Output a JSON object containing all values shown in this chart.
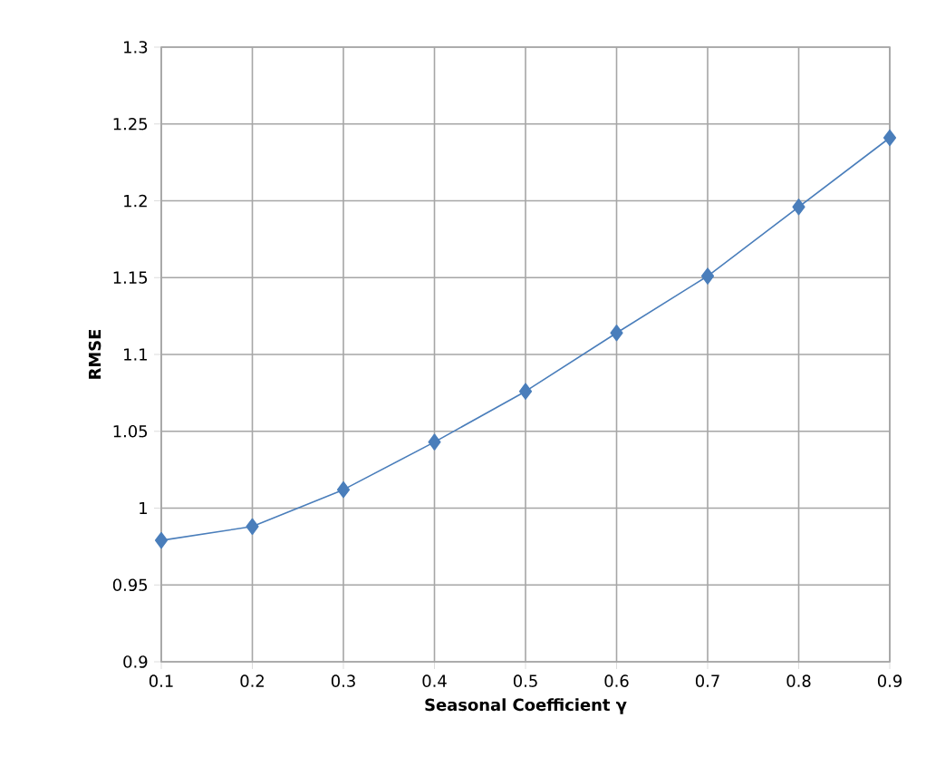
{
  "chart_data": {
    "type": "line",
    "xlabel": "Seasonal Coefficient γ",
    "ylabel": "RMSE",
    "x": [
      0.1,
      0.2,
      0.3,
      0.4,
      0.5,
      0.6,
      0.7,
      0.8,
      0.9
    ],
    "series": [
      {
        "color": "#4a7ebb",
        "values": [
          0.979,
          0.988,
          1.012,
          1.043,
          1.076,
          1.114,
          1.151,
          1.196,
          1.241
        ]
      }
    ],
    "xlim": [
      0.1,
      0.9
    ],
    "xticks": [
      0.1,
      0.2,
      0.3,
      0.4,
      0.5,
      0.6,
      0.7,
      0.8,
      0.9
    ],
    "ylim": [
      0.9,
      1.3
    ],
    "yticks": [
      0.9,
      0.95,
      1,
      1.05,
      1.1,
      1.15,
      1.2,
      1.25,
      1.3
    ],
    "grid": true,
    "marker": "diamond",
    "line_style": "solid"
  }
}
